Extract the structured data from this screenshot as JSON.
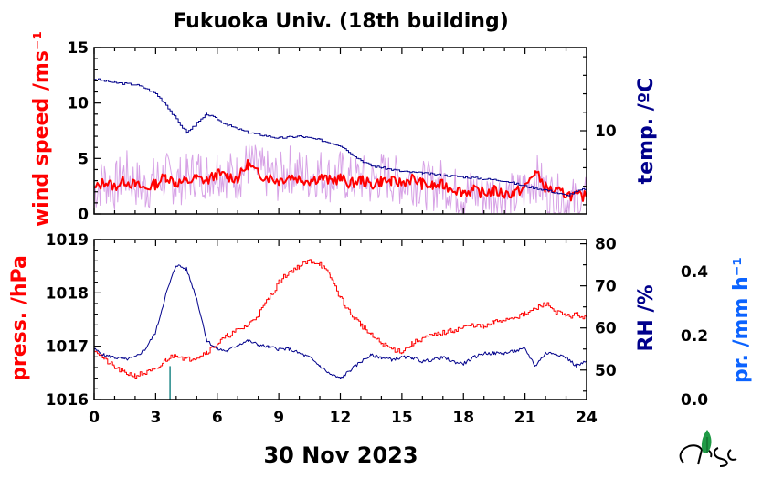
{
  "title": "Fukuoka Univ. (18th building)",
  "date_label": "30 Nov 2023",
  "colors": {
    "red": "#ff0000",
    "navy": "#00008b",
    "lavender": "#d7a2e6",
    "blue": "#0b63ff",
    "teal": "#118080",
    "axis": "#000000"
  },
  "chart_data": [
    {
      "type": "line",
      "panel": "top",
      "xlim": [
        0,
        24
      ],
      "x_ticks": [
        0,
        3,
        6,
        9,
        12,
        15,
        18,
        21,
        24
      ],
      "left_axis": {
        "label": "wind speed /ms⁻¹",
        "ylim": [
          0,
          15
        ],
        "ticks": [
          0,
          5,
          10,
          15
        ]
      },
      "right_axis": {
        "label": "temp. /ºC",
        "ylim": [
          5.5,
          14.5
        ],
        "ticks": [
          10
        ]
      },
      "series": [
        {
          "axis": "left",
          "style": "gust band (light purple)",
          "x": [
            0,
            0.5,
            1,
            1.5,
            2,
            2.5,
            3,
            3.5,
            4,
            4.5,
            5,
            5.5,
            6,
            6.5,
            7,
            7.5,
            8,
            8.5,
            9,
            9.5,
            10,
            10.5,
            11,
            11.5,
            12,
            12.5,
            13,
            13.5,
            14,
            14.5,
            15,
            15.5,
            16,
            16.5,
            17,
            17.5,
            18,
            18.5,
            19,
            19.5,
            20,
            20.5,
            21,
            21.5,
            22,
            22.5,
            23,
            23.5,
            24
          ],
          "y": [
            4.0,
            4.8,
            4.2,
            5.5,
            4.6,
            4.1,
            4.9,
            5.2,
            4.7,
            5.0,
            5.6,
            5.3,
            5.8,
            5.4,
            5.1,
            6.3,
            5.7,
            5.3,
            5.0,
            5.9,
            5.5,
            5.2,
            5.6,
            5.0,
            5.4,
            4.8,
            5.1,
            4.6,
            5.3,
            5.0,
            4.7,
            4.9,
            4.5,
            4.2,
            4.7,
            3.9,
            3.6,
            3.8,
            3.4,
            3.7,
            3.5,
            3.3,
            4.0,
            5.2,
            3.8,
            3.2,
            3.1,
            2.8,
            3.0
          ]
        },
        {
          "axis": "left",
          "style": "wind speed (red)",
          "x": [
            0,
            0.5,
            1,
            1.5,
            2,
            2.5,
            3,
            3.5,
            4,
            4.5,
            5,
            5.5,
            6,
            6.5,
            7,
            7.5,
            8,
            8.5,
            9,
            9.5,
            10,
            10.5,
            11,
            11.5,
            12,
            12.5,
            13,
            13.5,
            14,
            14.5,
            15,
            15.5,
            16,
            16.5,
            17,
            17.5,
            18,
            18.5,
            19,
            19.5,
            20,
            20.5,
            21,
            21.5,
            22,
            22.5,
            23,
            23.5,
            24
          ],
          "y": [
            2.2,
            2.9,
            2.5,
            3.0,
            2.6,
            2.3,
            2.7,
            3.4,
            2.8,
            2.9,
            3.2,
            3.0,
            3.6,
            3.4,
            3.2,
            4.5,
            3.6,
            3.3,
            3.0,
            3.4,
            3.2,
            3.0,
            3.3,
            3.0,
            3.2,
            2.7,
            3.1,
            2.6,
            3.0,
            2.9,
            2.8,
            3.2,
            2.7,
            2.5,
            2.6,
            2.3,
            2.0,
            2.1,
            1.9,
            2.1,
            1.8,
            1.9,
            2.4,
            3.8,
            2.4,
            2.0,
            1.8,
            1.6,
            1.6
          ]
        },
        {
          "axis": "right",
          "style": "temperature (navy)",
          "x": [
            0,
            1,
            2,
            2.5,
            3,
            3.5,
            4,
            4.5,
            5,
            5.5,
            6,
            6.5,
            7,
            7.5,
            8,
            9,
            10,
            11,
            12,
            12.5,
            13,
            13.5,
            14,
            15,
            16,
            17,
            18,
            19,
            20,
            21,
            22,
            23,
            24
          ],
          "y": [
            12.8,
            12.6,
            12.5,
            12.3,
            12.0,
            11.4,
            10.6,
            9.9,
            10.4,
            10.9,
            10.6,
            10.3,
            10.1,
            9.9,
            9.8,
            9.6,
            9.7,
            9.5,
            9.2,
            8.8,
            8.4,
            8.1,
            8.0,
            7.8,
            7.7,
            7.6,
            7.5,
            7.4,
            7.3,
            7.0,
            6.8,
            6.5,
            6.9
          ]
        }
      ]
    },
    {
      "type": "line",
      "panel": "bottom",
      "xlim": [
        0,
        24
      ],
      "x_ticks": [
        0,
        3,
        6,
        9,
        12,
        15,
        18,
        21,
        24
      ],
      "left_axis": {
        "label": "press. /hPa",
        "ylim": [
          1016,
          1019
        ],
        "ticks": [
          1016,
          1017,
          1018,
          1019
        ]
      },
      "right_axis": {
        "label": "RH /%",
        "ylim": [
          43,
          81
        ],
        "ticks": [
          50,
          60,
          70,
          80
        ]
      },
      "outer_axis": {
        "label": "pr. /mm h⁻¹",
        "ylim": [
          0,
          0.5
        ],
        "ticks": [
          0.0,
          0.2,
          0.4
        ]
      },
      "series": [
        {
          "axis": "left",
          "style": "pressure (red)",
          "x": [
            0,
            0.5,
            1,
            1.5,
            2,
            2.5,
            3,
            3.5,
            4,
            4.5,
            5,
            5.5,
            6,
            6.5,
            7,
            7.5,
            8,
            8.5,
            9,
            9.5,
            10,
            10.5,
            11,
            11.5,
            12,
            12.5,
            13,
            13.5,
            14,
            14.5,
            15,
            15.5,
            16,
            16.5,
            17,
            17.5,
            18,
            18.5,
            19,
            19.5,
            20,
            20.5,
            21,
            21.5,
            22,
            22.5,
            23,
            23.5,
            24
          ],
          "y": [
            1016.95,
            1016.75,
            1016.6,
            1016.5,
            1016.45,
            1016.5,
            1016.55,
            1016.75,
            1016.85,
            1016.75,
            1016.8,
            1016.9,
            1017.05,
            1017.2,
            1017.3,
            1017.4,
            1017.6,
            1017.9,
            1018.2,
            1018.4,
            1018.5,
            1018.6,
            1018.55,
            1018.3,
            1017.9,
            1017.6,
            1017.4,
            1017.2,
            1017.05,
            1016.95,
            1016.9,
            1017.05,
            1017.15,
            1017.2,
            1017.25,
            1017.3,
            1017.35,
            1017.4,
            1017.35,
            1017.45,
            1017.5,
            1017.55,
            1017.6,
            1017.7,
            1017.8,
            1017.65,
            1017.55,
            1017.6,
            1017.5
          ]
        },
        {
          "axis": "right",
          "style": "relative humidity (navy)",
          "x": [
            0,
            0.5,
            1,
            1.5,
            2,
            2.5,
            3,
            3.5,
            4,
            4.5,
            5,
            5.5,
            6,
            6.5,
            7,
            7.5,
            8,
            8.5,
            9,
            9.5,
            10,
            10.5,
            11,
            11.5,
            12,
            12.5,
            13,
            13.5,
            14,
            14.5,
            15,
            15.5,
            16,
            16.5,
            17,
            17.5,
            18,
            18.5,
            19,
            19.5,
            20,
            20.5,
            21,
            21.5,
            22,
            22.5,
            23,
            23.5,
            24
          ],
          "y": [
            55,
            53.5,
            53,
            52.5,
            53,
            55,
            59,
            68,
            75,
            74,
            67,
            57,
            55,
            54.5,
            56,
            57,
            56,
            55.5,
            55,
            55,
            54,
            53,
            51,
            49,
            48,
            50,
            52,
            53.5,
            53,
            52.5,
            53,
            53,
            52,
            52.5,
            53,
            52,
            51.5,
            53,
            54,
            54,
            54,
            54.5,
            55,
            51,
            54,
            54,
            53,
            51,
            52
          ]
        },
        {
          "axis": "outer",
          "style": "precipitation (teal bar)",
          "x": [
            3.7
          ],
          "y": [
            0.11
          ]
        }
      ]
    }
  ]
}
